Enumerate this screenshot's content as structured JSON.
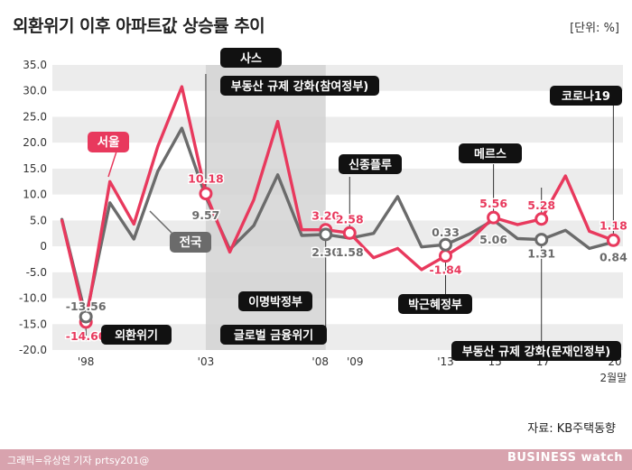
{
  "header": {
    "title": "외환위기 이후 아파트값 상승률 추이",
    "unit": "[단위: %]"
  },
  "footer": {
    "source": "자료: KB주택동향",
    "credit": "그래픽=유상연 기자 prtsy201@",
    "brand": "BUSINESS watch"
  },
  "colors": {
    "seoul": "#e8395d",
    "nation": "#6b6b6b",
    "shade": "#d4d4d4",
    "band": "#ececec"
  },
  "chart_data": {
    "type": "line",
    "ylim": [
      -20,
      35
    ],
    "yticks": [
      "35.0",
      "30.0",
      "25.0",
      "20.0",
      "15.0",
      "10.0",
      "5.0",
      "0",
      "-5.0",
      "-10.0",
      "-15.0",
      "-20.0"
    ],
    "ytick_values": [
      35,
      30,
      25,
      20,
      15,
      10,
      5,
      0,
      -5,
      -10,
      -15,
      -20
    ],
    "xlim": [
      1996.6,
      2020.4
    ],
    "xticks": [
      {
        "x": 1998,
        "label": "'98"
      },
      {
        "x": 2003,
        "label": "'03"
      },
      {
        "x": 2008,
        "label": "'08"
      },
      {
        "x": 2009,
        "label": "'09"
      },
      {
        "x": 2013,
        "label": "'13"
      },
      {
        "x": 2015,
        "label": "'15"
      },
      {
        "x": 2017,
        "label": "'17"
      },
      {
        "x": 2020,
        "label": "'20"
      }
    ],
    "xtick_sublabel": "2월말",
    "shaded_region": [
      2003,
      2008
    ],
    "series": [
      {
        "name": "서울",
        "color": "#e8395d",
        "x": [
          1997,
          1998,
          1999,
          2000,
          2001,
          2002,
          2003,
          2004,
          2005,
          2006,
          2007,
          2008,
          2009,
          2010,
          2011,
          2012,
          2013,
          2014,
          2015,
          2016,
          2017,
          2018,
          2019,
          2020
        ],
        "values": [
          5.0,
          -14.6,
          12.5,
          4.3,
          19.3,
          30.8,
          10.18,
          -1.1,
          9.0,
          24.1,
          3.2,
          3.2,
          2.58,
          -2.2,
          -0.4,
          -4.5,
          -1.84,
          1.1,
          5.56,
          4.2,
          5.28,
          13.6,
          2.9,
          1.18
        ]
      },
      {
        "name": "전국",
        "color": "#6b6b6b",
        "x": [
          1997,
          1998,
          1999,
          2000,
          2001,
          2002,
          2003,
          2004,
          2005,
          2006,
          2007,
          2008,
          2009,
          2010,
          2011,
          2012,
          2013,
          2014,
          2015,
          2016,
          2017,
          2018,
          2019,
          2020
        ],
        "values": [
          5.2,
          -13.56,
          8.4,
          1.4,
          14.5,
          22.8,
          9.57,
          -0.6,
          4.0,
          13.8,
          2.1,
          2.3,
          1.58,
          2.5,
          9.6,
          -0.1,
          0.33,
          2.4,
          5.06,
          1.5,
          1.31,
          3.1,
          -0.4,
          0.84
        ]
      }
    ],
    "data_labels": [
      {
        "series": "서울",
        "x": 1998,
        "y": -14.6,
        "text": "-14.60",
        "pos": "below",
        "dy": 16
      },
      {
        "series": "전국",
        "x": 1998,
        "y": -13.56,
        "text": "-13.56",
        "pos": "above",
        "dy": -11
      },
      {
        "series": "서울",
        "x": 2003,
        "y": 10.18,
        "text": "10.18",
        "pos": "above",
        "dy": -16
      },
      {
        "series": "전국",
        "x": 2003,
        "y": 9.57,
        "text": "9.57",
        "pos": "below",
        "dy": 21
      },
      {
        "series": "서울",
        "x": 2008,
        "y": 3.2,
        "text": "3.20",
        "pos": "above",
        "dy": -15
      },
      {
        "series": "전국",
        "x": 2008,
        "y": 2.3,
        "text": "2.30",
        "pos": "below",
        "dy": 20
      },
      {
        "series": "서울",
        "x": 2009,
        "y": 2.58,
        "text": "2.58",
        "pos": "above",
        "dy": -15
      },
      {
        "series": "전국",
        "x": 2009,
        "y": 1.58,
        "text": "1.58",
        "pos": "below",
        "dy": 16
      },
      {
        "series": "전국",
        "x": 2013,
        "y": 0.33,
        "text": "0.33",
        "pos": "above",
        "dy": -13
      },
      {
        "series": "서울",
        "x": 2013,
        "y": -1.84,
        "text": "-1.84",
        "pos": "below",
        "dy": 16
      },
      {
        "series": "서울",
        "x": 2015,
        "y": 5.56,
        "text": "5.56",
        "pos": "above",
        "dy": -15
      },
      {
        "series": "전국",
        "x": 2015,
        "y": 5.06,
        "text": "5.06",
        "pos": "below",
        "dy": 22
      },
      {
        "series": "서울",
        "x": 2017,
        "y": 5.28,
        "text": "5.28",
        "pos": "above",
        "dy": -15
      },
      {
        "series": "전국",
        "x": 2017,
        "y": 1.31,
        "text": "1.31",
        "pos": "below",
        "dy": 16
      },
      {
        "series": "서울",
        "x": 2020,
        "y": 1.18,
        "text": "1.18",
        "pos": "above",
        "dy": -16
      },
      {
        "series": "전국",
        "x": 2020,
        "y": 0.84,
        "text": "0.84",
        "pos": "below",
        "dy": 17
      }
    ],
    "marker_points": [
      {
        "series": "서울",
        "x": 1998,
        "y": -14.6
      },
      {
        "series": "전국",
        "x": 1998,
        "y": -13.56
      },
      {
        "series": "서울",
        "x": 2003,
        "y": 10.18
      },
      {
        "series": "서울",
        "x": 2008,
        "y": 3.2
      },
      {
        "series": "전국",
        "x": 2008,
        "y": 2.3
      },
      {
        "series": "서울",
        "x": 2009,
        "y": 2.58
      },
      {
        "series": "서울",
        "x": 2013,
        "y": -1.84
      },
      {
        "series": "전국",
        "x": 2013,
        "y": 0.33
      },
      {
        "series": "서울",
        "x": 2015,
        "y": 5.56
      },
      {
        "series": "서울",
        "x": 2017,
        "y": 5.28
      },
      {
        "series": "전국",
        "x": 2017,
        "y": 1.31
      },
      {
        "series": "서울",
        "x": 2020,
        "y": 1.18
      }
    ],
    "series_labels": [
      {
        "text": "서울",
        "color": "#e8395d"
      },
      {
        "text": "전국",
        "color": "#6b6b6b"
      }
    ],
    "annotations": [
      {
        "text": "외환위기",
        "x": 1998
      },
      {
        "text": "사스",
        "x": 2003
      },
      {
        "text": "부동산 규제 강화(참여정부)",
        "x": 2003
      },
      {
        "text": "이명박정부",
        "x": 2008
      },
      {
        "text": "글로벌 금융위기",
        "x": 2008
      },
      {
        "text": "신종플루",
        "x": 2009
      },
      {
        "text": "박근혜정부",
        "x": 2013
      },
      {
        "text": "메르스",
        "x": 2015
      },
      {
        "text": "부동산 규제 강화(문재인정부)",
        "x": 2017
      },
      {
        "text": "코로나19",
        "x": 2020
      }
    ]
  }
}
